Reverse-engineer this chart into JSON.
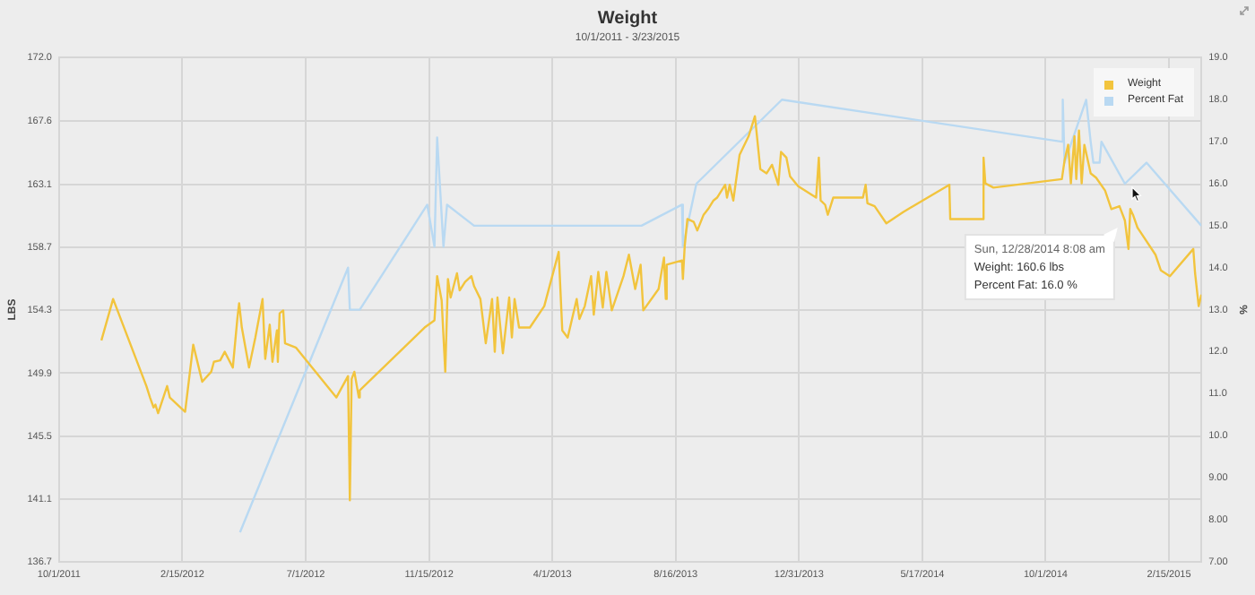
{
  "chart_data": {
    "type": "line",
    "title": "Weight",
    "subtitle": "10/1/2011 - 3/23/2015",
    "ylabel": "LBS",
    "y2label": "%",
    "xlim": [
      "2011-10-01",
      "2015-03-23"
    ],
    "xticks": [
      {
        "value": "2011-10-01",
        "label": "10/1/2011"
      },
      {
        "value": "2012-02-15",
        "label": "2/15/2012"
      },
      {
        "value": "2012-07-01",
        "label": "7/1/2012"
      },
      {
        "value": "2012-11-15",
        "label": "11/15/2012"
      },
      {
        "value": "2013-04-01",
        "label": "4/1/2013"
      },
      {
        "value": "2013-08-16",
        "label": "8/16/2013"
      },
      {
        "value": "2013-12-31",
        "label": "12/31/2013"
      },
      {
        "value": "2014-05-17",
        "label": "5/17/2014"
      },
      {
        "value": "2014-10-01",
        "label": "10/1/2014"
      },
      {
        "value": "2015-02-15",
        "label": "2/15/2015"
      }
    ],
    "ylim": [
      136.7,
      172.0
    ],
    "yticks": [
      {
        "value": 136.7,
        "label": "136.7"
      },
      {
        "value": 141.1,
        "label": "141.1"
      },
      {
        "value": 145.5,
        "label": "145.5"
      },
      {
        "value": 149.9,
        "label": "149.9"
      },
      {
        "value": 154.3,
        "label": "154.3"
      },
      {
        "value": 158.7,
        "label": "158.7"
      },
      {
        "value": 163.1,
        "label": "163.1"
      },
      {
        "value": 167.6,
        "label": "167.6"
      },
      {
        "value": 172.0,
        "label": "172.0"
      }
    ],
    "y2lim": [
      7,
      19
    ],
    "y2ticks": [
      {
        "value": 7,
        "label": "7.00"
      },
      {
        "value": 8,
        "label": "8.00"
      },
      {
        "value": 9,
        "label": "9.00"
      },
      {
        "value": 10,
        "label": "10.0"
      },
      {
        "value": 11,
        "label": "11.0"
      },
      {
        "value": 12,
        "label": "12.0"
      },
      {
        "value": 13,
        "label": "13.0"
      },
      {
        "value": 14,
        "label": "14.0"
      },
      {
        "value": 15,
        "label": "15.0"
      },
      {
        "value": 16,
        "label": "16.0"
      },
      {
        "value": 17,
        "label": "17.0"
      },
      {
        "value": 18,
        "label": "18.0"
      },
      {
        "value": 19,
        "label": "19.0"
      }
    ],
    "grid": true,
    "legend": "top right",
    "marker": "none",
    "line_style": "solid",
    "annotations": [
      {
        "text": "Sun, 12/28/2014 8:08 am\nWeight: 160.6 lbs\nPercent Fat: 16.0 %",
        "x": "2014-12-28",
        "y": 160.6
      }
    ],
    "series": [
      {
        "name": "Weight",
        "color": "#f2c43d",
        "x": [
          "2011-11-17",
          "2011-11-30",
          "2012-01-06",
          "2012-01-10",
          "2012-01-14",
          "2012-01-16",
          "2012-01-19",
          "2012-01-29",
          "2012-02-01",
          "2012-02-18",
          "2012-02-27",
          "2012-03-08",
          "2012-03-18",
          "2012-03-21",
          "2012-03-28",
          "2012-04-02",
          "2012-04-11",
          "2012-04-16",
          "2012-04-18",
          "2012-04-21",
          "2012-04-29",
          "2012-05-06",
          "2012-05-14",
          "2012-05-17",
          "2012-05-22",
          "2012-05-25",
          "2012-05-30",
          "2012-05-31",
          "2012-06-02",
          "2012-06-06",
          "2012-06-08",
          "2012-06-20",
          "2012-08-04",
          "2012-08-17",
          "2012-08-19",
          "2012-08-21",
          "2012-08-24",
          "2012-08-29",
          "2012-08-30",
          "2012-11-10",
          "2012-11-21",
          "2012-11-24",
          "2012-11-29",
          "2012-12-03",
          "2012-12-06",
          "2012-12-09",
          "2012-12-16",
          "2012-12-19",
          "2012-12-25",
          "2013-01-01",
          "2013-01-04",
          "2013-01-11",
          "2013-01-17",
          "2013-01-24",
          "2013-01-27",
          "2013-01-30",
          "2013-02-05",
          "2013-02-12",
          "2013-02-15",
          "2013-02-18",
          "2013-02-23",
          "2013-03-07",
          "2013-03-23",
          "2013-04-08",
          "2013-04-12",
          "2013-04-18",
          "2013-04-28",
          "2013-05-01",
          "2013-05-07",
          "2013-05-14",
          "2013-05-17",
          "2013-05-22",
          "2013-05-27",
          "2013-05-31",
          "2013-06-06",
          "2013-06-19",
          "2013-06-25",
          "2013-07-02",
          "2013-07-08",
          "2013-07-11",
          "2013-07-28",
          "2013-08-03",
          "2013-08-05",
          "2013-08-06",
          "2013-08-23",
          "2013-08-24",
          "2013-08-26",
          "2013-08-29",
          "2013-09-05",
          "2013-09-09",
          "2013-09-16",
          "2013-09-21",
          "2013-09-27",
          "2013-10-01",
          "2013-10-10",
          "2013-10-12",
          "2013-10-15",
          "2013-10-19",
          "2013-10-26",
          "2013-11-05",
          "2013-11-12",
          "2013-11-18",
          "2013-11-25",
          "2013-12-01",
          "2013-12-08",
          "2013-12-11",
          "2013-12-17",
          "2013-12-21",
          "2013-12-30",
          "2014-01-19",
          "2014-01-22",
          "2014-01-24",
          "2014-01-29",
          "2014-02-01",
          "2014-02-07",
          "2014-03-12",
          "2014-03-15",
          "2014-03-17",
          "2014-03-25",
          "2014-04-07",
          "2014-04-26",
          "2014-06-16",
          "2014-06-17",
          "2014-07-23",
          "2014-07-24",
          "2014-07-26",
          "2014-08-04",
          "2014-10-19",
          "2014-10-22",
          "2014-10-26",
          "2014-10-29",
          "2014-11-02",
          "2014-11-04",
          "2014-11-07",
          "2014-11-10",
          "2014-11-13",
          "2014-11-20",
          "2014-11-26",
          "2014-12-06",
          "2014-12-13",
          "2014-12-22",
          "2014-12-28",
          "2015-01-01",
          "2015-01-03",
          "2015-01-06",
          "2015-01-11",
          "2015-01-31",
          "2015-02-06",
          "2015-02-16",
          "2015-03-14",
          "2015-03-16",
          "2015-03-20",
          "2015-03-23"
        ],
        "values": [
          152.2,
          155.1,
          149.0,
          148.2,
          147.5,
          147.7,
          147.1,
          149.0,
          148.2,
          147.2,
          151.9,
          149.3,
          150.0,
          150.7,
          150.8,
          151.4,
          150.3,
          153.7,
          154.8,
          153.1,
          150.3,
          152.4,
          155.1,
          150.9,
          153.3,
          150.7,
          152.9,
          150.7,
          154.1,
          154.3,
          152.0,
          151.7,
          148.2,
          149.7,
          141.0,
          149.5,
          150.0,
          148.2,
          148.7,
          153.1,
          153.6,
          156.7,
          155.0,
          150.0,
          156.5,
          155.2,
          156.9,
          155.7,
          156.3,
          156.7,
          156.0,
          155.1,
          152.0,
          155.1,
          151.4,
          155.2,
          151.3,
          155.2,
          152.4,
          155.1,
          153.1,
          153.1,
          154.6,
          158.4,
          152.9,
          152.4,
          155.1,
          153.7,
          154.6,
          156.7,
          154.0,
          157.0,
          154.5,
          157.0,
          154.3,
          156.7,
          158.2,
          155.8,
          157.5,
          154.3,
          155.8,
          158.0,
          155.1,
          157.5,
          157.8,
          156.5,
          158.8,
          160.7,
          160.5,
          159.9,
          161.0,
          161.4,
          162.0,
          162.2,
          163.1,
          162.2,
          163.1,
          162.0,
          165.2,
          166.5,
          167.9,
          164.2,
          163.9,
          164.5,
          163.1,
          165.4,
          165.0,
          163.7,
          163.0,
          162.2,
          165.0,
          162.0,
          161.7,
          161.0,
          162.2,
          162.2,
          163.1,
          161.8,
          161.6,
          160.4,
          161.2,
          163.1,
          160.7,
          160.7,
          165.0,
          163.2,
          162.9,
          163.5,
          164.8,
          165.9,
          163.2,
          166.5,
          163.5,
          166.9,
          163.2,
          165.9,
          163.9,
          163.6,
          162.7,
          161.4,
          161.6,
          160.6,
          158.6,
          161.4,
          161.0,
          160.1,
          158.2,
          157.1,
          156.7,
          158.6,
          156.9,
          154.6,
          155.4
        ]
      },
      {
        "name": "Percent Fat",
        "color": "#b9d9f2",
        "axis": "y2",
        "x": [
          "2012-04-19",
          "2012-08-17",
          "2012-08-19",
          "2012-08-30",
          "2012-11-13",
          "2012-11-21",
          "2012-11-24",
          "2012-12-01",
          "2012-12-05",
          "2013-01-04",
          "2013-07-09",
          "2013-08-23",
          "2013-08-24",
          "2013-09-08",
          "2013-12-12",
          "2014-10-19",
          "2014-10-20",
          "2014-10-22",
          "2014-11-15",
          "2014-11-20",
          "2014-11-23",
          "2014-11-30",
          "2014-12-02",
          "2014-12-28",
          "2015-01-21",
          "2015-03-23"
        ],
        "values": [
          7.7,
          14.0,
          13.0,
          13.0,
          15.5,
          14.5,
          17.1,
          14.5,
          15.5,
          15.0,
          15.0,
          15.5,
          14.5,
          16.0,
          18.0,
          17.0,
          18.0,
          16.5,
          18.0,
          17.0,
          16.5,
          16.5,
          17.0,
          16.0,
          16.5,
          15.0
        ]
      }
    ]
  }
}
